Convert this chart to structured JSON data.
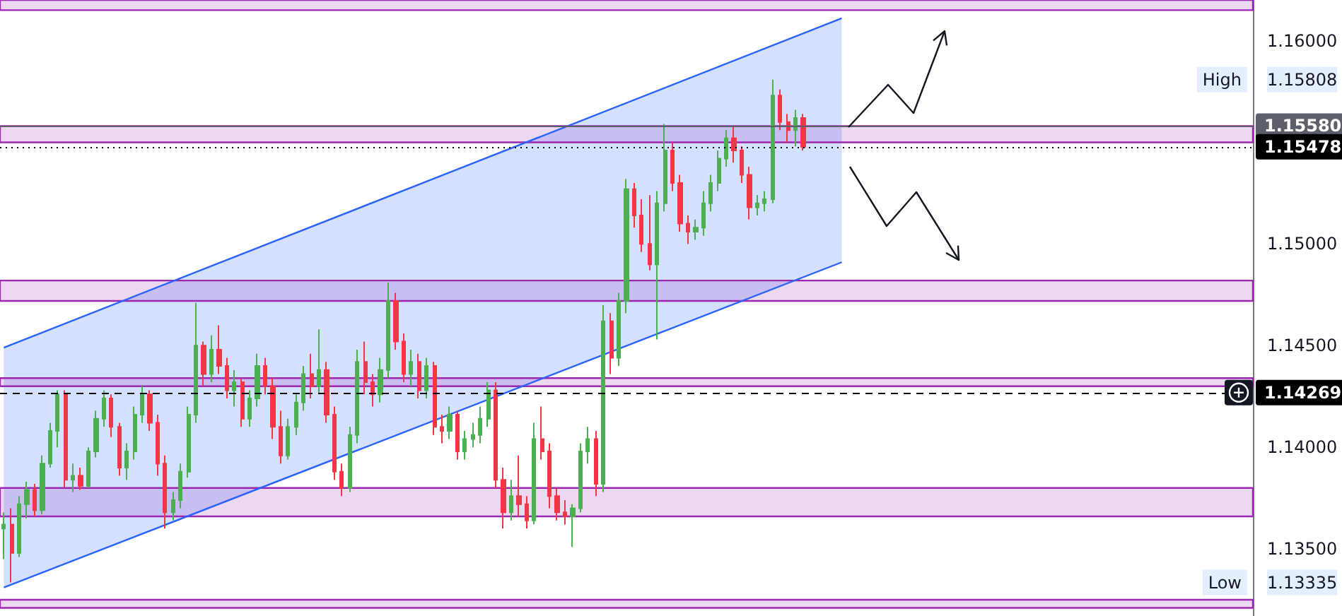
{
  "chart_data": {
    "type": "candlestick",
    "categories": [
      null,
      null,
      null,
      null,
      null,
      null,
      null,
      null,
      null,
      null,
      null,
      null,
      null,
      null,
      null,
      null,
      null,
      null,
      null,
      null,
      null,
      null,
      null,
      null,
      null,
      null,
      null,
      null,
      null,
      null,
      null,
      null,
      null,
      null,
      null,
      null,
      null,
      null,
      null,
      null,
      null,
      null,
      null,
      null,
      null,
      null,
      null,
      null,
      null,
      null,
      null,
      null,
      null,
      null,
      null,
      null,
      null,
      null,
      null,
      null,
      null,
      null,
      null,
      null,
      null,
      null,
      null,
      null,
      null,
      null,
      null,
      null,
      null,
      null,
      null,
      null,
      null,
      null,
      null,
      null,
      null,
      null,
      null,
      null,
      null,
      null,
      null,
      null,
      null,
      null,
      null,
      null,
      null,
      null,
      null,
      null,
      null,
      null,
      null,
      null,
      null,
      null,
      null,
      null,
      null,
      null,
      null,
      null,
      null,
      null,
      null,
      null,
      null,
      null,
      null,
      null,
      null,
      null,
      null,
      null,
      null,
      null,
      null,
      null,
      null,
      null,
      null,
      null,
      null,
      null,
      null,
      null,
      null,
      null,
      null,
      null,
      null,
      null,
      null,
      null,
      null,
      null,
      null,
      null,
      null,
      null,
      null,
      null,
      null,
      null,
      null,
      null,
      null,
      null,
      null,
      null,
      null,
      null,
      null,
      null,
      null,
      null,
      null
    ],
    "ohlc": [
      [
        1.136,
        1.1368,
        1.1345,
        1.1362
      ],
      [
        1.1362,
        1.137,
        1.13335,
        1.1348
      ],
      [
        1.1348,
        1.1376,
        1.1346,
        1.1372
      ],
      [
        1.1372,
        1.1383,
        1.1365,
        1.1379
      ],
      [
        1.1379,
        1.1382,
        1.1366,
        1.1369
      ],
      [
        1.1369,
        1.1396,
        1.1367,
        1.1392
      ],
      [
        1.1392,
        1.1412,
        1.139,
        1.1408
      ],
      [
        1.1408,
        1.1428,
        1.14,
        1.1426
      ],
      [
        1.1426,
        1.1428,
        1.138,
        1.1384
      ],
      [
        1.1384,
        1.1392,
        1.1378,
        1.1386
      ],
      [
        1.1386,
        1.139,
        1.1379,
        1.1381
      ],
      [
        1.1381,
        1.14,
        1.138,
        1.1398
      ],
      [
        1.1398,
        1.1418,
        1.1395,
        1.1414
      ],
      [
        1.1414,
        1.1428,
        1.141,
        1.1424
      ],
      [
        1.1424,
        1.1426,
        1.1405,
        1.141
      ],
      [
        1.141,
        1.1412,
        1.1386,
        1.139
      ],
      [
        1.139,
        1.1402,
        1.1384,
        1.1398
      ],
      [
        1.1398,
        1.142,
        1.1394,
        1.1416
      ],
      [
        1.1416,
        1.143,
        1.1412,
        1.1426
      ],
      [
        1.1426,
        1.1428,
        1.1408,
        1.1412
      ],
      [
        1.1412,
        1.1416,
        1.1386,
        1.1392
      ],
      [
        1.1392,
        1.1396,
        1.136,
        1.1368
      ],
      [
        1.1368,
        1.1378,
        1.1364,
        1.1374
      ],
      [
        1.1374,
        1.1392,
        1.137,
        1.1388
      ],
      [
        1.1388,
        1.142,
        1.1385,
        1.1416
      ],
      [
        1.1416,
        1.1471,
        1.1412,
        1.145
      ],
      [
        1.145,
        1.1452,
        1.143,
        1.1436
      ],
      [
        1.1436,
        1.1455,
        1.1432,
        1.1448
      ],
      [
        1.1448,
        1.146,
        1.1436,
        1.144
      ],
      [
        1.144,
        1.1444,
        1.1424,
        1.1428
      ],
      [
        1.1428,
        1.1438,
        1.142,
        1.1432
      ],
      [
        1.1432,
        1.1434,
        1.141,
        1.1414
      ],
      [
        1.1414,
        1.1428,
        1.141,
        1.1424
      ],
      [
        1.1424,
        1.1446,
        1.142,
        1.144
      ],
      [
        1.144,
        1.1444,
        1.1426,
        1.143
      ],
      [
        1.143,
        1.1434,
        1.1404,
        1.141
      ],
      [
        1.141,
        1.1418,
        1.1392,
        1.1396
      ],
      [
        1.1396,
        1.1414,
        1.1394,
        1.141
      ],
      [
        1.141,
        1.1426,
        1.1406,
        1.1422
      ],
      [
        1.1422,
        1.144,
        1.1418,
        1.1436
      ],
      [
        1.1436,
        1.1446,
        1.1424,
        1.143
      ],
      [
        1.143,
        1.1458,
        1.1426,
        1.1438
      ],
      [
        1.1438,
        1.1442,
        1.1412,
        1.1416
      ],
      [
        1.1416,
        1.142,
        1.1384,
        1.1388
      ],
      [
        1.1388,
        1.1392,
        1.1376,
        1.138
      ],
      [
        1.138,
        1.141,
        1.1378,
        1.1406
      ],
      [
        1.1406,
        1.1448,
        1.1402,
        1.1442
      ],
      [
        1.1442,
        1.1452,
        1.1426,
        1.1432
      ],
      [
        1.1432,
        1.1436,
        1.142,
        1.1426
      ],
      [
        1.1426,
        1.1444,
        1.1422,
        1.1438
      ],
      [
        1.1438,
        1.1481,
        1.1434,
        1.1472
      ],
      [
        1.1472,
        1.1476,
        1.1448,
        1.1452
      ],
      [
        1.1452,
        1.1456,
        1.1432,
        1.1436
      ],
      [
        1.1436,
        1.1448,
        1.143,
        1.1442
      ],
      [
        1.1442,
        1.1446,
        1.1424,
        1.1428
      ],
      [
        1.1428,
        1.1444,
        1.1424,
        1.144
      ],
      [
        1.144,
        1.1442,
        1.1406,
        1.141
      ],
      [
        1.141,
        1.1416,
        1.1402,
        1.1408
      ],
      [
        1.1408,
        1.142,
        1.1404,
        1.1416
      ],
      [
        1.1416,
        1.1418,
        1.1394,
        1.1398
      ],
      [
        1.1398,
        1.1408,
        1.1394,
        1.1404
      ],
      [
        1.1404,
        1.1412,
        1.14,
        1.1406
      ],
      [
        1.1406,
        1.142,
        1.1402,
        1.1414
      ],
      [
        1.1414,
        1.1432,
        1.141,
        1.1428
      ],
      [
        1.1428,
        1.1432,
        1.138,
        1.1384
      ],
      [
        1.1384,
        1.139,
        1.136,
        1.1368
      ],
      [
        1.1368,
        1.1384,
        1.1364,
        1.1376
      ],
      [
        1.1376,
        1.1396,
        1.1366,
        1.1372
      ],
      [
        1.1372,
        1.1376,
        1.136,
        1.1364
      ],
      [
        1.1364,
        1.1412,
        1.1362,
        1.1404
      ],
      [
        1.1404,
        1.142,
        1.1394,
        1.1398
      ],
      [
        1.1398,
        1.1402,
        1.137,
        1.1376
      ],
      [
        1.1376,
        1.138,
        1.1364,
        1.1368
      ],
      [
        1.1368,
        1.1374,
        1.1362,
        1.1366
      ],
      [
        1.1366,
        1.1372,
        1.1351,
        1.137
      ],
      [
        1.137,
        1.1402,
        1.1368,
        1.1398
      ],
      [
        1.1398,
        1.141,
        1.1392,
        1.1404
      ],
      [
        1.1404,
        1.1408,
        1.1376,
        1.1382
      ],
      [
        1.1382,
        1.147,
        1.1378,
        1.1462
      ],
      [
        1.1462,
        1.1466,
        1.1436,
        1.1444
      ],
      [
        1.1444,
        1.1476,
        1.144,
        1.1472
      ],
      [
        1.1472,
        1.1532,
        1.1466,
        1.1527
      ],
      [
        1.1527,
        1.153,
        1.1508,
        1.1514
      ],
      [
        1.1514,
        1.1522,
        1.1496,
        1.15
      ],
      [
        1.15,
        1.1524,
        1.1487,
        1.149
      ],
      [
        1.149,
        1.1526,
        1.1453,
        1.152
      ],
      [
        1.152,
        1.1559,
        1.1516,
        1.1546
      ],
      [
        1.1546,
        1.155,
        1.1526,
        1.153
      ],
      [
        1.153,
        1.1534,
        1.1506,
        1.151
      ],
      [
        1.151,
        1.1514,
        1.15,
        1.1506
      ],
      [
        1.1506,
        1.1512,
        1.1502,
        1.1508
      ],
      [
        1.1508,
        1.1526,
        1.1504,
        1.152
      ],
      [
        1.152,
        1.1534,
        1.1516,
        1.153
      ],
      [
        1.153,
        1.1546,
        1.1526,
        1.1542
      ],
      [
        1.1542,
        1.1556,
        1.1538,
        1.1552
      ],
      [
        1.1552,
        1.1558,
        1.154,
        1.1546
      ],
      [
        1.1546,
        1.1548,
        1.153,
        1.1534
      ],
      [
        1.1534,
        1.1538,
        1.1512,
        1.1518
      ],
      [
        1.1518,
        1.1524,
        1.1514,
        1.152
      ],
      [
        1.152,
        1.1526,
        1.1516,
        1.1522
      ],
      [
        1.1522,
        1.15808,
        1.152,
        1.1573
      ],
      [
        1.1573,
        1.1576,
        1.1556,
        1.156
      ],
      [
        1.156,
        1.1564,
        1.155,
        1.1556
      ],
      [
        1.1556,
        1.1566,
        1.1548,
        1.1562
      ],
      [
        1.1562,
        1.1564,
        1.1546,
        1.15478
      ],
      null,
      null,
      null,
      null,
      null,
      null,
      null,
      null,
      null,
      null,
      null,
      null,
      null,
      null,
      null,
      null,
      null,
      null,
      null,
      null,
      null,
      null,
      null,
      null,
      null,
      null,
      null,
      null,
      null,
      null,
      null,
      null,
      null,
      null,
      null,
      null,
      null,
      null,
      null,
      null,
      null,
      null,
      null,
      null,
      null,
      null,
      null,
      null,
      null,
      null,
      null,
      null,
      null,
      null,
      null,
      null,
      null,
      null
    ],
    "colors": [
      "#4caf50",
      "#f23645",
      "#4caf50",
      "#4caf50",
      "#f23645",
      "#4caf50",
      "#4caf50",
      "#4caf50",
      "#f23645",
      "#4caf50",
      "#f23645",
      "#4caf50",
      "#4caf50",
      "#4caf50",
      "#f23645",
      "#f23645",
      "#4caf50",
      "#4caf50",
      "#4caf50",
      "#f23645",
      "#f23645",
      "#f23645",
      "#4caf50",
      "#4caf50",
      "#4caf50",
      "#4caf50",
      "#f23645",
      "#4caf50",
      "#f23645",
      "#f23645",
      "#4caf50",
      "#f23645",
      "#4caf50",
      "#4caf50",
      "#f23645",
      "#f23645",
      "#f23645",
      "#4caf50",
      "#4caf50",
      "#4caf50",
      "#f23645",
      "#4caf50",
      "#f23645",
      "#f23645",
      "#f23645",
      "#4caf50",
      "#4caf50",
      "#f23645",
      "#f23645",
      "#4caf50",
      "#4caf50",
      "#f23645",
      "#f23645",
      "#4caf50",
      "#f23645",
      "#4caf50",
      "#f23645",
      "#f23645",
      "#4caf50",
      "#f23645",
      "#4caf50",
      "#4caf50",
      "#4caf50",
      "#4caf50",
      "#f23645",
      "#f23645",
      "#4caf50",
      "#f23645",
      "#f23645",
      "#4caf50",
      "#f23645",
      "#f23645",
      "#f23645",
      "#f23645",
      "#4caf50",
      "#4caf50",
      "#4caf50",
      "#f23645",
      "#4caf50",
      "#f23645",
      "#4caf50",
      "#4caf50",
      "#f23645",
      "#f23645",
      "#f23645",
      "#4caf50",
      "#4caf50",
      "#f23645",
      "#f23645",
      "#f23645",
      "#4caf50",
      "#4caf50",
      "#4caf50",
      "#4caf50",
      "#4caf50",
      "#f23645",
      "#f23645",
      "#f23645",
      "#4caf50",
      "#4caf50",
      "#4caf50",
      "#f23645",
      "#f23645",
      "#4caf50",
      "#f23645",
      null,
      null,
      null,
      null,
      null,
      null,
      null,
      null,
      null,
      null,
      null,
      null,
      null,
      null,
      null,
      null,
      null,
      null,
      null,
      null,
      null,
      null,
      null,
      null,
      null,
      null,
      null,
      null,
      null,
      null,
      null,
      null,
      null,
      null,
      null,
      null,
      null,
      null,
      null,
      null,
      null,
      null,
      null,
      null,
      null,
      null,
      null,
      null,
      null,
      null,
      null,
      null,
      null,
      null,
      null,
      null,
      null,
      null
    ],
    "ylim": [
      1.1317,
      1.162
    ],
    "yticks": [
      {
        "value": 1.135,
        "label": "1.13500"
      },
      {
        "value": 1.14,
        "label": "1.14000"
      },
      {
        "value": 1.145,
        "label": "1.14500"
      },
      {
        "value": 1.15,
        "label": "1.15000"
      },
      {
        "value": 1.16,
        "label": "1.16000"
      },
      {
        "value": 1.15808,
        "label": "1.15808"
      },
      {
        "value": 1.13335,
        "label": "1.13335"
      }
    ],
    "tick_labels": "y",
    "grid": false,
    "bands": [
      {
        "axis": "y",
        "from": 1.1615,
        "to": 1.162,
        "color": "#9c27b0"
      },
      {
        "axis": "y",
        "from": 1.155,
        "to": 1.1558,
        "color": "#9c27b0"
      },
      {
        "axis": "y",
        "from": 1.1472,
        "to": 1.1482,
        "color": "#9c27b0"
      },
      {
        "axis": "y",
        "from": 1.143,
        "to": 1.1434,
        "color": "#9c27b0"
      },
      {
        "axis": "y",
        "from": 1.1366,
        "to": 1.138,
        "color": "#9c27b0"
      },
      {
        "axis": "y",
        "from": 1.1321,
        "to": 1.1325,
        "color": "#9c27b0"
      }
    ],
    "ref_lines": [
      {
        "axis": "y",
        "value": 1.1558,
        "label": "1.15580",
        "color": "#5d606b",
        "line_style": "solid"
      },
      {
        "axis": "y",
        "value": 1.15478,
        "label": "1.15478",
        "color": "#000000",
        "line_style": "dotted"
      },
      {
        "axis": "y",
        "value": 1.14269,
        "label": "1.14269",
        "color": "#000000",
        "line_style": "dashed"
      }
    ],
    "annotations": [
      {
        "text": "High",
        "y": 1.15808
      },
      {
        "text": "Low",
        "y": 1.13335
      }
    ],
    "series": [
      {
        "type": "line",
        "color": "#2962ff",
        "lower": [
          1.1331,
          null,
          null,
          null,
          null,
          null,
          null,
          null,
          null,
          null,
          null,
          null,
          null,
          null,
          null,
          null,
          null,
          null,
          null,
          null,
          null,
          null,
          null,
          null,
          null,
          null,
          null,
          null,
          null,
          null,
          null,
          null,
          null,
          null,
          null,
          null,
          null,
          null,
          null,
          null,
          null,
          null,
          null,
          null,
          null,
          null,
          null,
          null,
          null,
          null,
          null,
          null,
          null,
          null,
          null,
          null,
          null,
          null,
          null,
          null,
          null,
          null,
          null,
          null,
          null,
          null,
          null,
          null,
          null,
          null,
          null,
          null,
          null,
          null,
          null,
          null,
          null,
          null,
          null,
          null,
          null,
          null,
          null,
          null,
          null,
          null,
          null,
          null,
          null,
          null,
          null,
          null,
          null,
          null,
          null,
          null,
          null,
          null,
          null,
          null,
          null,
          null,
          null,
          null,
          null,
          null,
          null,
          null,
          null,
          1.1491,
          null,
          null,
          null,
          null,
          null,
          null,
          null,
          null,
          null,
          null,
          null,
          null,
          null,
          null,
          null,
          null,
          null,
          null,
          null,
          null,
          null,
          null,
          null,
          null,
          null,
          null,
          null,
          null,
          null,
          null,
          null,
          null,
          null,
          null,
          null,
          null,
          null,
          null,
          null,
          null,
          null,
          null,
          null,
          null,
          null,
          null,
          null,
          null,
          null,
          null,
          null,
          null,
          null
        ],
        "upper": [
          1.1449,
          null,
          null,
          null,
          null,
          null,
          null,
          null,
          null,
          null,
          null,
          null,
          null,
          null,
          null,
          null,
          null,
          null,
          null,
          null,
          null,
          null,
          null,
          null,
          null,
          null,
          null,
          null,
          null,
          null,
          null,
          null,
          null,
          null,
          null,
          null,
          null,
          null,
          null,
          null,
          null,
          null,
          null,
          null,
          null,
          null,
          null,
          null,
          null,
          null,
          null,
          null,
          null,
          null,
          null,
          null,
          null,
          null,
          null,
          null,
          null,
          null,
          null,
          null,
          null,
          null,
          null,
          null,
          null,
          null,
          null,
          null,
          null,
          null,
          null,
          null,
          null,
          null,
          null,
          null,
          null,
          null,
          null,
          null,
          null,
          null,
          null,
          null,
          null,
          null,
          null,
          null,
          null,
          null,
          null,
          null,
          null,
          null,
          null,
          null,
          null,
          null,
          null,
          null,
          null,
          null,
          null,
          null,
          null,
          1.1611,
          null,
          null,
          null,
          null,
          null,
          null,
          null,
          null,
          null,
          null,
          null,
          null,
          null,
          null,
          null,
          null,
          null,
          null,
          null,
          null,
          null,
          null,
          null,
          null,
          null,
          null,
          null,
          null,
          null,
          null,
          null,
          null,
          null,
          null,
          null,
          null,
          null,
          null,
          null,
          null,
          null,
          null,
          null,
          null,
          null,
          null,
          null,
          null,
          null,
          null,
          null,
          null,
          null
        ],
        "values": [
          1.1449,
          null,
          null,
          null,
          null,
          null,
          null,
          null,
          null,
          null,
          null,
          null,
          null,
          null,
          null,
          null,
          null,
          null,
          null,
          null,
          null,
          null,
          null,
          null,
          null,
          null,
          null,
          null,
          null,
          null,
          null,
          null,
          null,
          null,
          null,
          null,
          null,
          null,
          null,
          null,
          null,
          null,
          null,
          null,
          null,
          null,
          null,
          null,
          null,
          null,
          null,
          null,
          null,
          null,
          null,
          null,
          null,
          null,
          null,
          null,
          null,
          null,
          null,
          null,
          null,
          null,
          null,
          null,
          null,
          null,
          null,
          null,
          null,
          null,
          null,
          null,
          null,
          null,
          null,
          null,
          null,
          null,
          null,
          null,
          null,
          null,
          null,
          null,
          null,
          null,
          null,
          null,
          null,
          null,
          null,
          null,
          null,
          null,
          null,
          null,
          null,
          null,
          null,
          null,
          null,
          null,
          null,
          null,
          null,
          1.1611,
          null,
          null,
          null,
          null,
          null,
          null,
          null,
          null,
          null,
          null,
          null,
          null,
          null,
          null,
          null,
          null,
          null,
          null,
          null,
          null,
          null,
          null,
          null,
          null,
          null,
          null,
          null,
          null,
          null,
          null,
          null,
          null,
          null,
          null,
          null,
          null,
          null,
          null,
          null,
          null,
          null,
          null,
          null,
          null,
          null,
          null,
          null,
          null,
          null,
          null,
          null,
          null,
          null
        ]
      },
      {
        "type": "line",
        "color": "#2962ff",
        "values": [
          1.1331,
          null,
          null,
          null,
          null,
          null,
          null,
          null,
          null,
          null,
          null,
          null,
          null,
          null,
          null,
          null,
          null,
          null,
          null,
          null,
          null,
          null,
          null,
          null,
          null,
          null,
          null,
          null,
          null,
          null,
          null,
          null,
          null,
          null,
          null,
          null,
          null,
          null,
          null,
          null,
          null,
          null,
          null,
          null,
          null,
          null,
          null,
          null,
          null,
          null,
          null,
          null,
          null,
          null,
          null,
          null,
          null,
          null,
          null,
          null,
          null,
          null,
          null,
          null,
          null,
          null,
          null,
          null,
          null,
          null,
          null,
          null,
          null,
          null,
          null,
          null,
          null,
          null,
          null,
          null,
          null,
          null,
          null,
          null,
          null,
          null,
          null,
          null,
          null,
          null,
          null,
          null,
          null,
          null,
          null,
          null,
          null,
          null,
          null,
          null,
          null,
          null,
          null,
          null,
          null,
          null,
          null,
          null,
          null,
          1.1491,
          null,
          null,
          null,
          null,
          null,
          null,
          null,
          null,
          null,
          null,
          null,
          null,
          null,
          null,
          null,
          null,
          null,
          null,
          null,
          null,
          null,
          null,
          null,
          null,
          null,
          null,
          null,
          null,
          null,
          null,
          null,
          null,
          null,
          null,
          null,
          null,
          null,
          null,
          null,
          null,
          null,
          null,
          null,
          null,
          null,
          null,
          null,
          null,
          null,
          null,
          null,
          null,
          null
        ]
      }
    ]
  }
}
